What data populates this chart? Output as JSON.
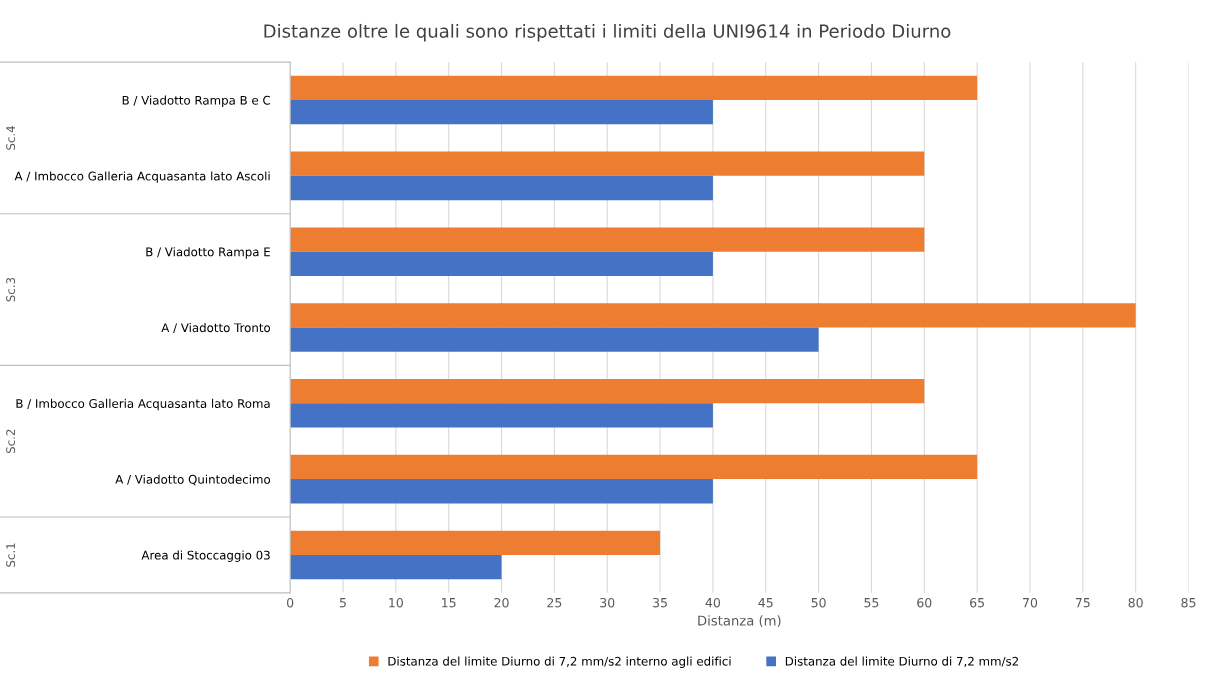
{
  "chart_data": {
    "type": "bar",
    "orientation": "horizontal",
    "title": "Distanze oltre le quali sono rispettati i limiti della UNI9614 in Periodo Diurno",
    "xlabel": "Distanza (m)",
    "categories": [
      "B / Viadotto Rampa B e C",
      "A / Imbocco Galleria Acquasanta lato Ascoli",
      "B / Viadotto Rampa E",
      "A / Viadotto Tronto",
      "B / Imbocco Galleria Acquasanta lato Roma",
      "A / Viadotto Quintodecimo",
      "Area di Stoccaggio 03"
    ],
    "series": [
      {
        "name": "Distanza del limite Diurno di 7,2 mm/s2 interno agli edifici",
        "color": "#ed7d31",
        "values": [
          65,
          60,
          60,
          80,
          60,
          65,
          35
        ]
      },
      {
        "name": "Distanza del limite Diurno di 7,2 mm/s2",
        "color": "#4472c4",
        "values": [
          40,
          40,
          40,
          50,
          40,
          40,
          20
        ]
      }
    ],
    "annotations": [
      "Sc.4",
      "Sc.3",
      "Sc.2",
      "Sc.1"
    ],
    "xlim": [
      0,
      85
    ],
    "xticks": [
      0,
      5,
      10,
      15,
      20,
      25,
      30,
      35,
      40,
      45,
      50,
      55,
      60,
      65,
      70,
      75,
      80,
      85
    ],
    "grid": "x",
    "legend": "bottom"
  }
}
